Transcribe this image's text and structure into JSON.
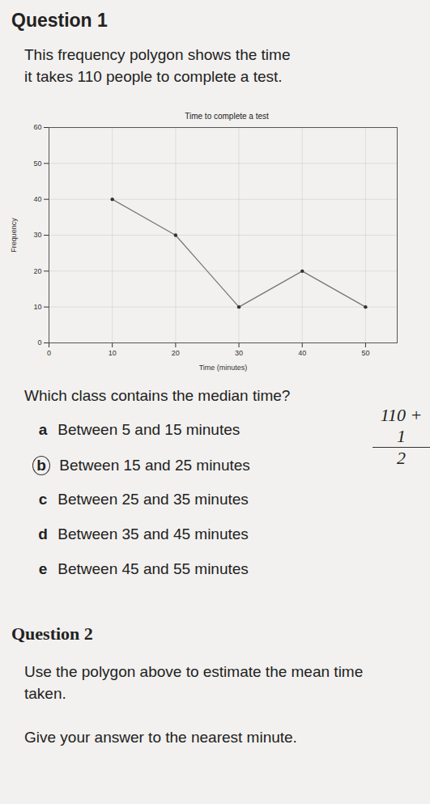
{
  "question1": {
    "heading": "Question 1",
    "intro": "This frequency polygon shows the time it takes 110 people to complete a test.",
    "prompt": "Which class contains the median time?",
    "options": [
      {
        "letter": "a",
        "text": "Between 5 and 15 minutes"
      },
      {
        "letter": "b",
        "text": "Between 15 and 25 minutes",
        "circled": true
      },
      {
        "letter": "c",
        "text": "Between 25 and 35 minutes"
      },
      {
        "letter": "d",
        "text": "Between 35 and 45 minutes"
      },
      {
        "letter": "e",
        "text": "Between 45 and 55 minutes"
      }
    ],
    "handwritten": {
      "numerator": "110 + 1",
      "denominator": "2"
    }
  },
  "chart_data": {
    "type": "line",
    "title": "Time to complete a test",
    "x_label": "Time (minutes)",
    "y_label": "Frequency",
    "x": [
      10,
      20,
      30,
      40,
      50
    ],
    "values": [
      40,
      30,
      10,
      20,
      10
    ],
    "color": "#777777",
    "marker": "circle",
    "xlim": [
      0,
      55
    ],
    "xticks": [
      0,
      10,
      20,
      30,
      40,
      50
    ],
    "ylim": [
      0,
      60
    ],
    "yticks": [
      0,
      10,
      20,
      30,
      40,
      50,
      60
    ],
    "grid": true
  },
  "question2": {
    "heading": "Question 2",
    "text": "Use the polygon above to estimate the mean time taken.",
    "instruction": "Give your answer to the nearest minute."
  }
}
